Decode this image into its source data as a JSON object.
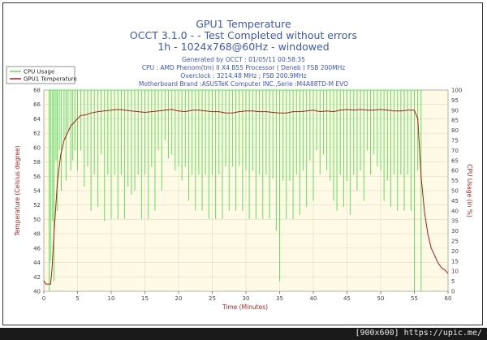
{
  "header": {
    "title": "GPU1 Temperature",
    "subtitle": "OCCT 3.1.0 -  - Test Completed without errors",
    "mode": "1h - 1024x768@60Hz - windowed"
  },
  "info": {
    "generated": "Generated by OCCT : 01/05/11 00:58:35",
    "cpu": "CPU : AMD Phenom(tm) II X4 B55 Processor ( Deneb ) FSB 200MHz",
    "overclock": "Overclock : 3214.48 MHz ; FSB 200.9MHz",
    "motherboard": "Motherboard Brand :ASUSTeK Computer INC.,Serie :M4A88TD-M EVO"
  },
  "footer": {
    "text": "[900x600] https://upic.me/"
  },
  "colors": {
    "cpu": "#5ee05e",
    "gpu": "#b01818",
    "plot_bg": "#fffae6",
    "title": "#3b57c9"
  },
  "chart_data": {
    "type": "line",
    "xlabel": "Time (Minutes)",
    "ylabel_left": "Temperature (Celsius degree)",
    "ylabel_right": "CPU Usage (in %)",
    "xlim": [
      0,
      60
    ],
    "ylim_left": [
      40,
      68
    ],
    "ylim_right": [
      0,
      100
    ],
    "x_ticks": [
      "0",
      "5",
      "10",
      "15",
      "20",
      "25",
      "30",
      "35",
      "40",
      "45",
      "50",
      "55",
      "60"
    ],
    "y_ticks_left": [
      "40",
      "42",
      "44",
      "46",
      "48",
      "50",
      "52",
      "54",
      "56",
      "58",
      "60",
      "62",
      "64",
      "66",
      "68"
    ],
    "y_ticks_right": [
      "0",
      "5",
      "10",
      "15",
      "20",
      "25",
      "30",
      "35",
      "40",
      "45",
      "50",
      "55",
      "60",
      "65",
      "70",
      "75",
      "80",
      "85",
      "90",
      "95",
      "100"
    ],
    "legend": [
      "CPU Usage",
      "GPU1 Temperature"
    ],
    "series": [
      {
        "name": "GPU1 Temperature",
        "axis": "left",
        "x": [
          0,
          0.3,
          0.6,
          0.8,
          1,
          1.2,
          1.5,
          2,
          2.5,
          3,
          3.5,
          4,
          4.5,
          5,
          5.5,
          6,
          7,
          8,
          9,
          10,
          11,
          12,
          13,
          14,
          15,
          16,
          17,
          18,
          19,
          20,
          21,
          22,
          23,
          24,
          25,
          26,
          27,
          28,
          29,
          30,
          31,
          32,
          33,
          34,
          35,
          36,
          37,
          38,
          39,
          40,
          41,
          42,
          43,
          44,
          45,
          46,
          47,
          48,
          49,
          50,
          51,
          52,
          53,
          54,
          55,
          55.5,
          56,
          56.5,
          57,
          57.5,
          58,
          58.5,
          59,
          59.5,
          60
        ],
        "values": [
          41.5,
          41,
          41,
          41,
          41,
          43,
          48,
          55,
          59,
          61,
          62,
          63,
          63.5,
          64,
          64.5,
          64.5,
          64.8,
          65,
          65.1,
          65.2,
          65.3,
          65.2,
          65.1,
          65,
          64.9,
          65,
          65.1,
          65.2,
          65.3,
          65.1,
          65,
          65.2,
          65.2,
          65.1,
          65,
          65,
          64.8,
          64.8,
          65,
          65.1,
          65.1,
          65,
          65,
          64.9,
          64.8,
          64.8,
          65,
          65,
          65.1,
          65.2,
          65,
          65.1,
          65,
          65.2,
          65.3,
          65.2,
          65.3,
          65.2,
          65.2,
          65.3,
          65.2,
          65.1,
          65.1,
          65.2,
          65.2,
          64,
          56,
          51,
          48,
          46,
          45,
          44,
          43.3,
          43,
          42.5
        ]
      },
      {
        "name": "CPU Usage",
        "axis": "right",
        "type": "spikes",
        "baseline": 100,
        "x": [
          0.8,
          1,
          1.3,
          1.5,
          1.8,
          2,
          2.3,
          2.6,
          3,
          3.3,
          3.6,
          4,
          4.3,
          4.6,
          5,
          5.5,
          6,
          6.5,
          7,
          7.5,
          8,
          8.5,
          9,
          9.5,
          10,
          10.5,
          11,
          11.5,
          12,
          12.5,
          13,
          13.5,
          14,
          14.5,
          15,
          15.5,
          16,
          16.5,
          17,
          17.5,
          18,
          18.5,
          19,
          19.5,
          20,
          20.5,
          21,
          21.5,
          22,
          22.5,
          23,
          23.5,
          24,
          24.5,
          25,
          25.5,
          26,
          26.5,
          27,
          27.5,
          28,
          28.5,
          29,
          29.5,
          30,
          30.5,
          31,
          31.5,
          32,
          32.5,
          33,
          33.5,
          34,
          34.5,
          35,
          35.5,
          36,
          36.5,
          37,
          37.5,
          38,
          38.5,
          39,
          39.5,
          40,
          40.5,
          41,
          41.5,
          42,
          42.5,
          43,
          43.5,
          44,
          44.5,
          45,
          45.5,
          46,
          46.5,
          47,
          47.5,
          48,
          48.5,
          49,
          49.5,
          50,
          50.5,
          51,
          51.5,
          52,
          52.5,
          53,
          53.5,
          54,
          54.5,
          55,
          55.5,
          56
        ],
        "values": [
          0,
          15,
          35,
          5,
          65,
          40,
          70,
          50,
          75,
          55,
          80,
          60,
          65,
          70,
          60,
          70,
          52,
          62,
          40,
          58,
          42,
          68,
          35,
          58,
          36,
          58,
          36,
          58,
          36,
          52,
          48,
          50,
          58,
          36,
          58,
          36,
          62,
          40,
          70,
          50,
          75,
          66,
          68,
          60,
          62,
          55,
          62,
          45,
          58,
          40,
          58,
          40,
          58,
          36,
          58,
          36,
          58,
          36,
          62,
          40,
          62,
          40,
          62,
          40,
          60,
          36,
          60,
          36,
          58,
          36,
          58,
          36,
          56,
          30,
          5,
          55,
          36,
          55,
          36,
          58,
          38,
          60,
          42,
          65,
          45,
          70,
          58,
          68,
          60,
          55,
          45,
          40,
          58,
          42,
          55,
          38,
          58,
          50,
          60,
          45,
          70,
          58,
          68,
          62,
          60,
          45,
          55,
          42,
          58,
          40,
          58,
          40,
          58,
          40,
          0,
          60,
          0
        ]
      }
    ]
  }
}
